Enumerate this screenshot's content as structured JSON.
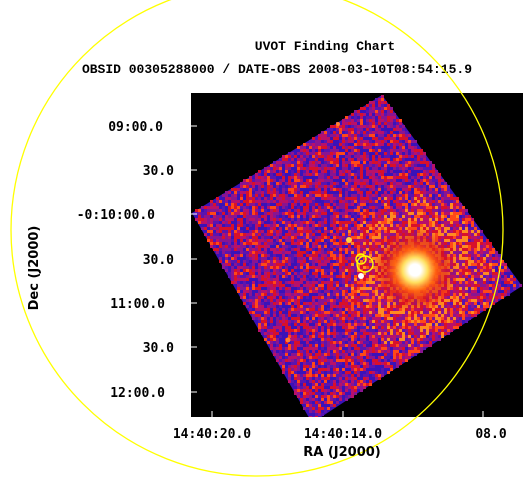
{
  "header": {
    "title": "UVOT Finding Chart",
    "subtitle": "OBSID 00305288000 / DATE-OBS 2008-03-10T08:54:15.9"
  },
  "axes": {
    "xlabel": "RA (J2000)",
    "ylabel": "Dec (J2000)",
    "x_ticks": [
      "14:40:20.0",
      "14:40:14.0",
      "08.0"
    ],
    "y_ticks": [
      "09:00.0",
      "30.0",
      "-0:10:00.0",
      "30.0",
      "11:00.0",
      "30.0",
      "12:00.0"
    ]
  },
  "colors": {
    "background": "#000000",
    "overlay": "#ffff00",
    "colormap_low": "#2a10c8",
    "colormap_mid": "#d8102a",
    "colormap_high": "#ffffff"
  }
}
